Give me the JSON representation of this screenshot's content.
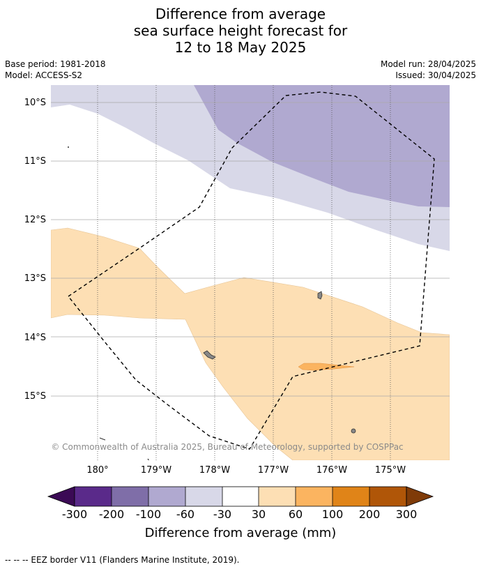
{
  "title": {
    "line1": "Difference from average",
    "line2": "sea surface height forecast for",
    "line3": "12 to 18 May 2025"
  },
  "meta": {
    "base_period": "Base period: 1981-2018",
    "model": "Model: ACCESS-S2",
    "model_run": "Model run: 28/04/2025",
    "issued": "Issued: 30/04/2025"
  },
  "map": {
    "lat_labels": [
      "10°S",
      "11°S",
      "12°S",
      "13°S",
      "14°S",
      "15°S"
    ],
    "lon_labels": [
      "180°",
      "179°W",
      "178°W",
      "177°W",
      "176°W",
      "175°W"
    ],
    "copyright": "© Commonwealth of Australia 2025, Bureau of Meteorology, supported by COSPPac"
  },
  "colorbar": {
    "ticks": [
      "-300",
      "-200",
      "-100",
      "-60",
      "-30",
      "30",
      "60",
      "100",
      "200",
      "300"
    ],
    "colors": [
      "#5a2a8a",
      "#7f6ea8",
      "#b0a9d0",
      "#d8d8e8",
      "#ffffff",
      "#fddfb4",
      "#fbb460",
      "#e08418",
      "#b05608"
    ],
    "under_color": "#3b0a55",
    "over_color": "#7f3b08",
    "label": "Difference from average (mm)"
  },
  "footer": {
    "legend": "--  --  -- EEZ border V11 (Flanders Marine Institute, 2019)."
  }
}
